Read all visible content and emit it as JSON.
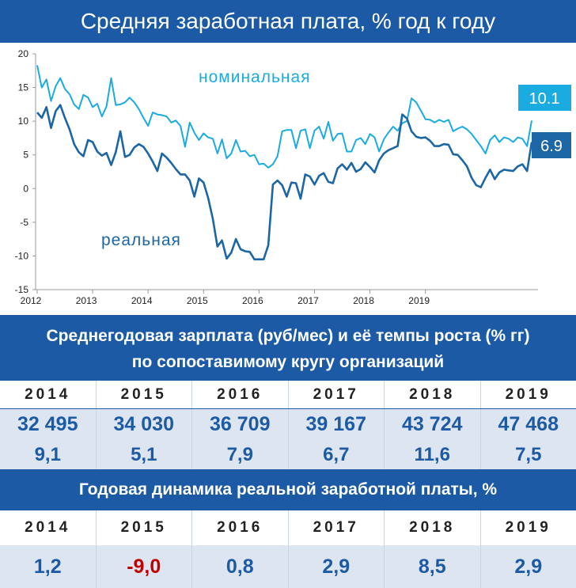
{
  "header": {
    "title": "Средняя заработная плата, % год к году"
  },
  "chart_data": {
    "type": "line",
    "ylim": [
      -15,
      20
    ],
    "yticks": [
      "20",
      "15",
      "10",
      "5",
      "0",
      "-5",
      "-10",
      "-15"
    ],
    "xticks": [
      "2012",
      "2013",
      "2014",
      "2015",
      "2016",
      "2017",
      "2018",
      "2019"
    ],
    "grid": false,
    "series": [
      {
        "name": "номинальная",
        "color": "#1aace0",
        "end_label": "10.1",
        "values": [
          18.3,
          15.0,
          16.2,
          13.0,
          15.2,
          16.4,
          14.8,
          14.0,
          12.5,
          11.8,
          13.9,
          13.5,
          12.1,
          12.6,
          10.7,
          12.2,
          16.4,
          12.4,
          12.5,
          12.8,
          13.5,
          12.8,
          11.8,
          10.5,
          9.3,
          11.3,
          11.0,
          10.9,
          10.7,
          9.8,
          10.1,
          9.3,
          6.2,
          9.8,
          8.3,
          7.2,
          8.2,
          7.6,
          7.4,
          5.2,
          7.3,
          4.5,
          5.2,
          7.2,
          5.5,
          5.6,
          4.8,
          5.0,
          3.6,
          3.7,
          3.1,
          3.6,
          4.8,
          8.5,
          8.7,
          8.7,
          6.0,
          8.6,
          8.8,
          6.0,
          8.6,
          9.2,
          7.4,
          9.9,
          7.1,
          8.1,
          8.2,
          5.5,
          5.5,
          7.2,
          7.5,
          6.6,
          8.1,
          7.6,
          5.5,
          7.3,
          8.3,
          9.2,
          8.6,
          9.7,
          10.0,
          13.4,
          12.8,
          11.6,
          10.3,
          10.2,
          9.8,
          10.2,
          9.9,
          10.2,
          8.5,
          8.9,
          9.2,
          8.8,
          8.1,
          7.2,
          6.3,
          5.2,
          7.2,
          7.9,
          6.9,
          7.6,
          7.4,
          6.9,
          7.6,
          7.4,
          6.3,
          10.1
        ]
      },
      {
        "name": "реальная",
        "color": "#1c66a6",
        "end_label": "6.9",
        "values": [
          11.3,
          10.5,
          12.1,
          9.0,
          11.5,
          12.4,
          10.5,
          8.8,
          6.6,
          5.4,
          4.8,
          7.2,
          6.9,
          5.5,
          4.9,
          5.3,
          3.5,
          5.4,
          8.5,
          4.7,
          5.0,
          6.1,
          6.6,
          6.2,
          5.2,
          4.0,
          2.6,
          5.2,
          4.6,
          3.8,
          2.9,
          2.1,
          2.1,
          1.2,
          -1.2,
          1.5,
          0.9,
          -1.4,
          -4.5,
          -8.6,
          -7.7,
          -10.4,
          -9.5,
          -7.5,
          -9.0,
          -9.3,
          -9.4,
          -10.5,
          -10.5,
          -10.5,
          -8.4,
          0.6,
          1.2,
          0.5,
          -1.2,
          0.9,
          0.8,
          -1.5,
          2.1,
          1.8,
          0.6,
          1.9,
          2.3,
          1.0,
          0.8,
          3.0,
          3.6,
          2.8,
          3.8,
          2.5,
          2.9,
          3.9,
          3.2,
          2.4,
          4.2,
          5.2,
          5.7,
          6.0,
          6.3,
          11.0,
          10.4,
          8.5,
          7.7,
          7.5,
          7.6,
          7.1,
          6.3,
          6.3,
          6.6,
          6.5,
          5.1,
          5.0,
          4.2,
          3.3,
          1.6,
          0.5,
          0.2,
          1.6,
          2.8,
          1.4,
          2.4,
          2.8,
          2.7,
          2.6,
          3.3,
          3.6,
          2.6,
          6.9
        ]
      }
    ]
  },
  "table1": {
    "title_line1": "Среднегодовая зарплата (руб/мес) и её темпы роста (% гг)",
    "title_line2": "по сопоставимому кругу организаций",
    "years": [
      "2014",
      "2015",
      "2016",
      "2017",
      "2018",
      "2019"
    ],
    "salaries": [
      "32 495",
      "34 030",
      "36 709",
      "39 167",
      "43 724",
      "47 468"
    ],
    "growth": [
      "9,1",
      "5,1",
      "7,9",
      "6,7",
      "11,6",
      "7,5"
    ]
  },
  "table2": {
    "title": "Годовая динамика реальной заработной платы, %",
    "years": [
      "2014",
      "2015",
      "2016",
      "2017",
      "2018",
      "2019"
    ],
    "values": [
      "1,2",
      "-9,0",
      "0,8",
      "2,9",
      "8,5",
      "2,9"
    ],
    "negative_color": "#c00000"
  }
}
